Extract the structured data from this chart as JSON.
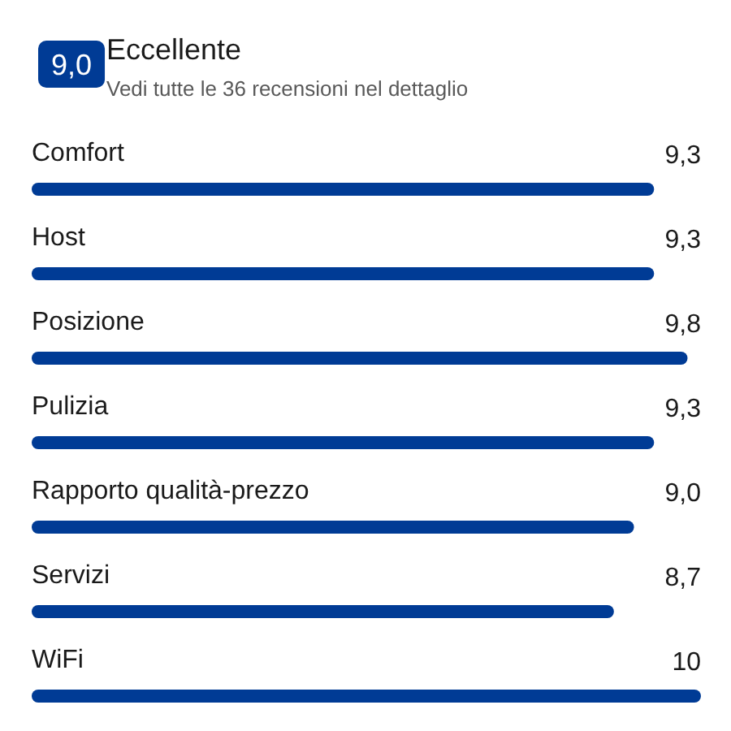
{
  "chart_data": {
    "type": "bar",
    "orientation": "horizontal",
    "title": "Eccellente",
    "subtitle": "Vedi tutte le 36 recensioni nel dettaglio",
    "annotations": [
      "9,0"
    ],
    "categories": [
      "Comfort",
      "Host",
      "Posizione",
      "Pulizia",
      "Rapporto qualità-prezzo",
      "Servizi",
      "WiFi"
    ],
    "values": [
      9.3,
      9.3,
      9.8,
      9.3,
      9.0,
      8.7,
      10
    ],
    "value_labels": [
      "9,3",
      "9,3",
      "9,8",
      "9,3",
      "9,0",
      "8,7",
      "10"
    ],
    "color": "#003b95",
    "xlim": [
      0,
      10
    ],
    "tick_labels": false
  }
}
